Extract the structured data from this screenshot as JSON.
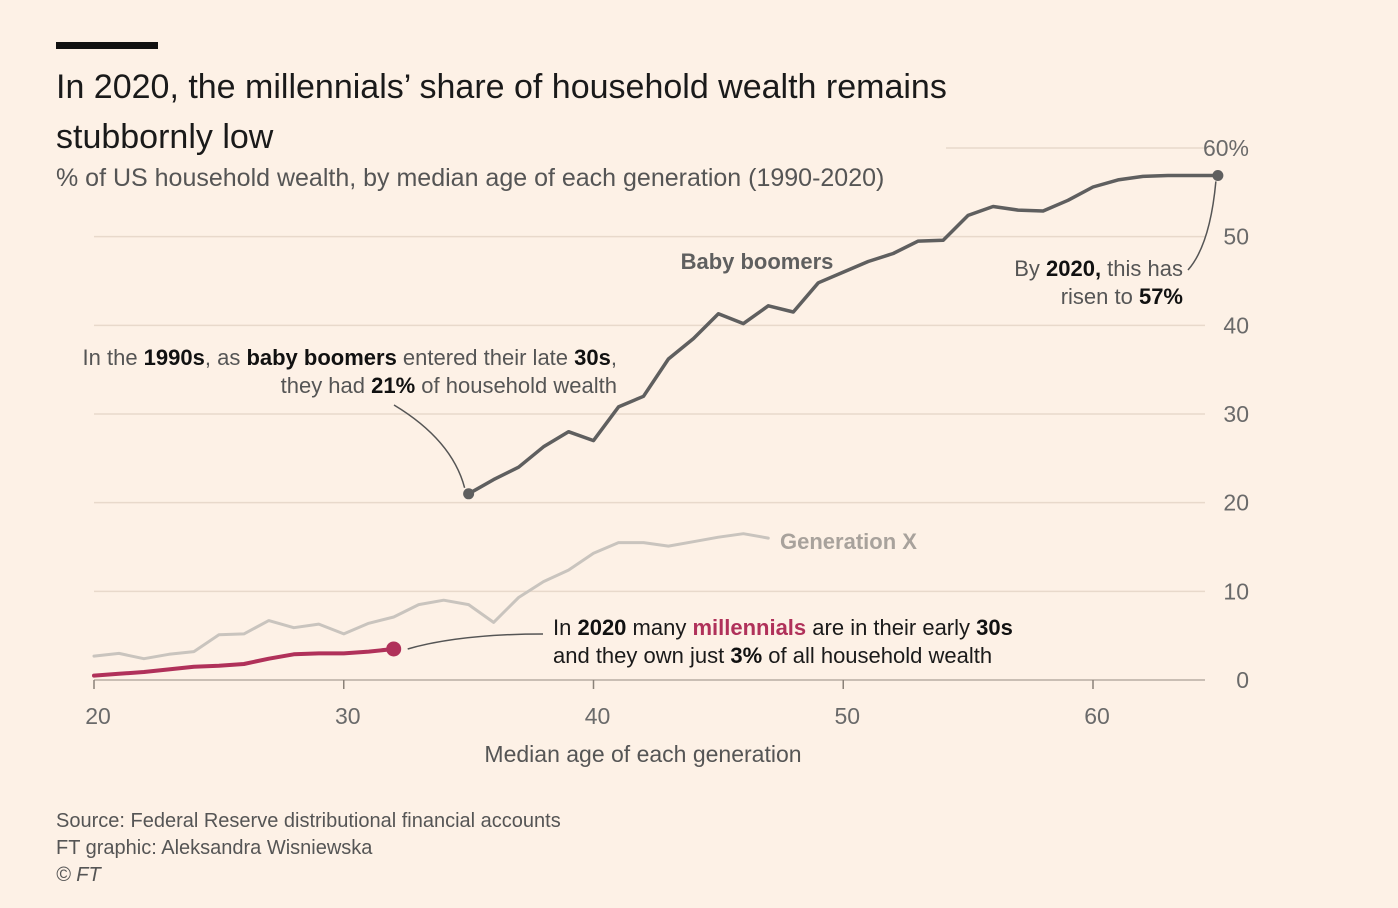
{
  "header": {
    "title": "In 2020, the millennials’ share of household wealth remains stubbornly low",
    "subtitle": "% of US household wealth, by median age of each generation (1990-2020)"
  },
  "footer": {
    "source": "Source: Federal Reserve distributional financial accounts",
    "credit": "FT graphic: Aleksandra Wisniewska",
    "copyright": "© FT"
  },
  "colors": {
    "boomers": "#5f5f5f",
    "genx": "#c9c4be",
    "millennials": "#b0315a",
    "grid": "#e8d9cb",
    "background": "#fdf1e6"
  },
  "annotations": {
    "boomers_1990": {
      "line1": [
        {
          "t": "In the "
        },
        {
          "t": "1990s",
          "b": true
        },
        {
          "t": ", as "
        },
        {
          "t": "baby boomers",
          "b": true
        },
        {
          "t": " entered their late "
        },
        {
          "t": "30s",
          "b": true
        },
        {
          "t": ","
        }
      ],
      "line2": [
        {
          "t": "they had "
        },
        {
          "t": "21%",
          "b": true
        },
        {
          "t": " of household wealth"
        }
      ]
    },
    "boomers_2020": {
      "line1": [
        {
          "t": "By "
        },
        {
          "t": "2020,",
          "b": true
        },
        {
          "t": " this has"
        }
      ],
      "line2": [
        {
          "t": "risen to "
        },
        {
          "t": "57%",
          "b": true
        }
      ]
    },
    "millennials_2020": {
      "line1": [
        {
          "t": "In "
        },
        {
          "t": "2020",
          "b": true
        },
        {
          "t": " many "
        },
        {
          "t": "millennials",
          "b": true,
          "c": "millennials"
        },
        {
          "t": " are in their early "
        },
        {
          "t": "30s",
          "b": true
        }
      ],
      "line2": [
        {
          "t": "and they own just "
        },
        {
          "t": "3%",
          "b": true
        },
        {
          "t": " of all household wealth"
        }
      ]
    }
  },
  "chart_data": {
    "type": "line",
    "title": "In 2020, the millennials’ share of household wealth remains stubbornly low",
    "subtitle": "% of US household wealth, by median age of each generation (1990-2020)",
    "xlabel": "Median age of each generation",
    "ylabel": "",
    "xlim": [
      20,
      65
    ],
    "ylim": [
      0,
      60
    ],
    "x_ticks": [
      "20",
      "30",
      "40",
      "50",
      "60"
    ],
    "y_ticks": [
      "0",
      "10",
      "20",
      "30",
      "40",
      "50",
      "60%"
    ],
    "y_tick_values": [
      0,
      10,
      20,
      30,
      40,
      50,
      60
    ],
    "grid": true,
    "series": [
      {
        "name": "Baby boomers",
        "color_key": "boomers",
        "x": [
          35,
          36,
          37,
          38,
          39,
          40,
          41,
          42,
          43,
          44,
          45,
          46,
          47,
          48,
          49,
          50,
          51,
          52,
          53,
          54,
          55,
          56,
          57,
          58,
          59,
          60,
          61,
          62,
          63,
          64,
          65
        ],
        "y": [
          21,
          22.6,
          24,
          26.3,
          28,
          27,
          30.8,
          32,
          36.2,
          38.5,
          41.3,
          40.2,
          42.2,
          41.5,
          44.8,
          46,
          47.2,
          48.1,
          49.5,
          49.6,
          52.4,
          53.4,
          53,
          52.9,
          54.1,
          55.6,
          56.4,
          56.8,
          56.9,
          56.9,
          56.9
        ]
      },
      {
        "name": "Generation X",
        "color_key": "genx",
        "x": [
          20,
          21,
          22,
          23,
          24,
          25,
          26,
          27,
          28,
          29,
          30,
          31,
          32,
          33,
          34,
          35,
          36,
          37,
          38,
          39,
          40,
          41,
          42,
          43,
          44,
          45,
          46,
          47
        ],
        "y": [
          2.7,
          3,
          2.4,
          2.9,
          3.2,
          5.1,
          5.2,
          6.7,
          5.9,
          6.3,
          5.2,
          6.4,
          7.1,
          8.5,
          9,
          8.5,
          6.5,
          9.3,
          11.1,
          12.4,
          14.3,
          15.5,
          15.5,
          15.1,
          15.6,
          16.1,
          16.5,
          16
        ]
      },
      {
        "name": "millennials",
        "color_key": "millennials",
        "x": [
          20,
          21,
          22,
          23,
          24,
          25,
          26,
          27,
          28,
          29,
          30,
          31,
          32
        ],
        "y": [
          0.5,
          0.7,
          0.9,
          1.2,
          1.5,
          1.6,
          1.8,
          2.4,
          2.9,
          3,
          3,
          3.2,
          3.5
        ]
      }
    ]
  }
}
